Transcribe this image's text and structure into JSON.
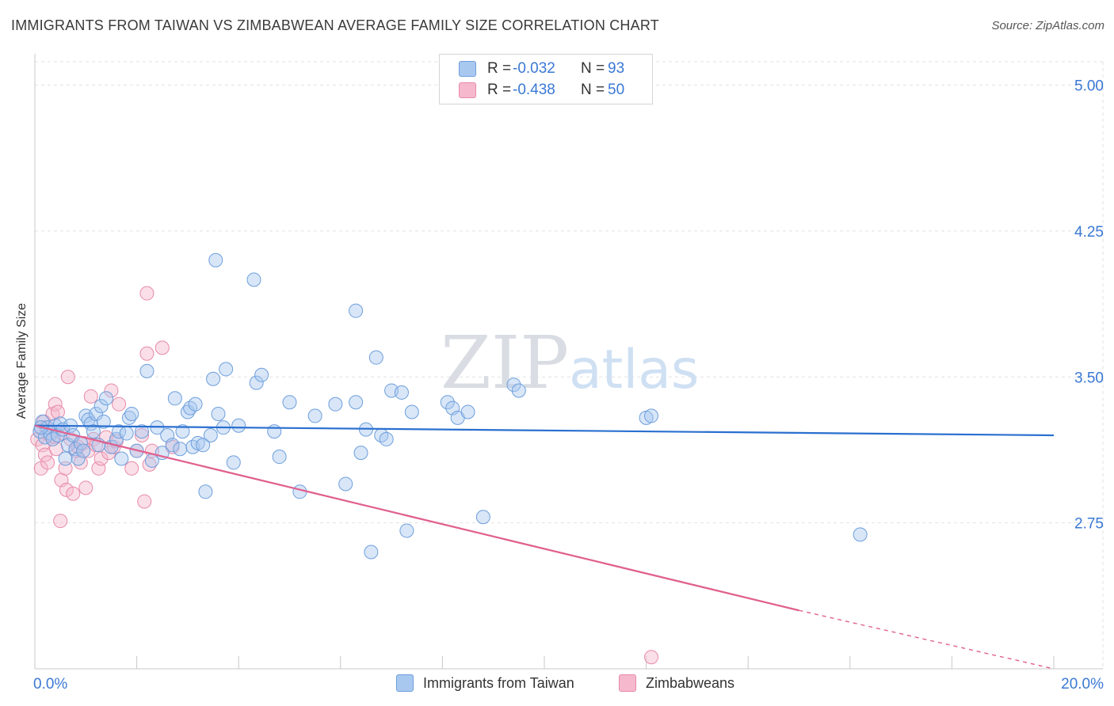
{
  "title": "IMMIGRANTS FROM TAIWAN VS ZIMBABWEAN AVERAGE FAMILY SIZE CORRELATION CHART",
  "source": "Source: ZipAtlas.com",
  "watermark": {
    "zip": "ZIP",
    "atlas": "atlas"
  },
  "legend": {
    "rows": [
      {
        "r_label": "R =",
        "r_value": "-0.032",
        "n_label": "N =",
        "n_value": "93"
      },
      {
        "r_label": "R =",
        "r_value": "-0.438",
        "n_label": "N =",
        "n_value": "50"
      }
    ]
  },
  "bottom_legend": {
    "series_1": "Immigrants from Taiwan",
    "series_2": "Zimbabweans"
  },
  "colors": {
    "blue_fill": "#a9c8f0",
    "blue_stroke": "#6e9fdc",
    "blue_line": "#2a6fcf",
    "pink_fill": "#f5b8cc",
    "pink_stroke": "#e88aa8",
    "pink_line": "#e0608e",
    "axis_text": "#3a78d4",
    "grid": "#e2e2e2"
  },
  "chart_data": {
    "type": "scatter",
    "title": "IMMIGRANTS FROM TAIWAN VS ZIMBABWEAN AVERAGE FAMILY SIZE CORRELATION CHART",
    "xlabel": "",
    "ylabel": "Average Family Size",
    "xlim": [
      0,
      20
    ],
    "ylim": [
      2.0,
      5.12
    ],
    "x_tick_labels": [
      "0.0%",
      "20.0%"
    ],
    "y_ticks": [
      2.75,
      3.5,
      4.25,
      5.0
    ],
    "y_tick_labels": [
      "2.75",
      "3.50",
      "4.25",
      "5.00"
    ],
    "series": [
      {
        "name": "Immigrants from Taiwan",
        "r": -0.032,
        "n": 93,
        "trend": {
          "x": [
            0,
            20
          ],
          "y": [
            3.25,
            3.2
          ]
        },
        "points": [
          [
            0.1,
            3.22
          ],
          [
            0.15,
            3.27
          ],
          [
            0.2,
            3.19
          ],
          [
            0.25,
            3.24
          ],
          [
            0.3,
            3.21
          ],
          [
            0.35,
            3.18
          ],
          [
            0.4,
            3.25
          ],
          [
            0.45,
            3.2
          ],
          [
            0.5,
            3.26
          ],
          [
            0.55,
            3.23
          ],
          [
            0.6,
            3.08
          ],
          [
            0.65,
            3.15
          ],
          [
            0.7,
            3.25
          ],
          [
            0.75,
            3.2
          ],
          [
            0.8,
            3.13
          ],
          [
            0.85,
            3.08
          ],
          [
            0.9,
            3.16
          ],
          [
            0.95,
            3.12
          ],
          [
            1.0,
            3.3
          ],
          [
            1.05,
            3.28
          ],
          [
            1.1,
            3.26
          ],
          [
            1.15,
            3.22
          ],
          [
            1.2,
            3.31
          ],
          [
            1.25,
            3.15
          ],
          [
            1.3,
            3.35
          ],
          [
            1.35,
            3.27
          ],
          [
            1.4,
            3.39
          ],
          [
            1.5,
            3.14
          ],
          [
            1.6,
            3.18
          ],
          [
            1.65,
            3.22
          ],
          [
            1.7,
            3.08
          ],
          [
            1.8,
            3.21
          ],
          [
            1.85,
            3.29
          ],
          [
            1.9,
            3.31
          ],
          [
            2.0,
            3.12
          ],
          [
            2.1,
            3.22
          ],
          [
            2.2,
            3.53
          ],
          [
            2.3,
            3.07
          ],
          [
            2.4,
            3.24
          ],
          [
            2.5,
            3.11
          ],
          [
            2.6,
            3.2
          ],
          [
            2.7,
            3.15
          ],
          [
            2.75,
            3.39
          ],
          [
            2.85,
            3.13
          ],
          [
            2.9,
            3.22
          ],
          [
            3.0,
            3.32
          ],
          [
            3.05,
            3.34
          ],
          [
            3.1,
            3.14
          ],
          [
            3.15,
            3.36
          ],
          [
            3.2,
            3.16
          ],
          [
            3.3,
            3.15
          ],
          [
            3.35,
            2.91
          ],
          [
            3.45,
            3.2
          ],
          [
            3.5,
            3.49
          ],
          [
            3.55,
            4.1
          ],
          [
            3.6,
            3.31
          ],
          [
            3.7,
            3.24
          ],
          [
            3.75,
            3.54
          ],
          [
            3.9,
            3.06
          ],
          [
            4.0,
            3.25
          ],
          [
            4.3,
            4.0
          ],
          [
            4.35,
            3.47
          ],
          [
            4.45,
            3.51
          ],
          [
            4.7,
            3.22
          ],
          [
            4.8,
            3.09
          ],
          [
            5.0,
            3.37
          ],
          [
            5.2,
            2.91
          ],
          [
            5.5,
            3.3
          ],
          [
            5.9,
            3.36
          ],
          [
            6.1,
            2.95
          ],
          [
            6.3,
            3.84
          ],
          [
            6.3,
            3.37
          ],
          [
            6.4,
            3.11
          ],
          [
            6.5,
            3.23
          ],
          [
            6.6,
            2.6
          ],
          [
            6.7,
            3.6
          ],
          [
            6.8,
            3.2
          ],
          [
            6.9,
            3.18
          ],
          [
            7.0,
            3.43
          ],
          [
            7.2,
            3.42
          ],
          [
            7.3,
            2.71
          ],
          [
            7.4,
            3.32
          ],
          [
            8.1,
            3.37
          ],
          [
            8.2,
            3.34
          ],
          [
            8.3,
            3.29
          ],
          [
            8.5,
            3.32
          ],
          [
            8.8,
            2.78
          ],
          [
            9.4,
            3.46
          ],
          [
            9.5,
            3.43
          ],
          [
            12.0,
            3.29
          ],
          [
            12.1,
            3.3
          ],
          [
            16.2,
            2.69
          ],
          [
            0.12,
            3.24
          ]
        ]
      },
      {
        "name": "Zimbabweans",
        "r": -0.438,
        "n": 50,
        "trend": {
          "x": [
            0,
            15
          ],
          "y": [
            3.25,
            2.3
          ]
        },
        "trend_dashed": {
          "x": [
            15,
            20
          ],
          "y": [
            2.3,
            2.0
          ]
        },
        "points": [
          [
            0.05,
            3.18
          ],
          [
            0.1,
            3.22
          ],
          [
            0.12,
            3.03
          ],
          [
            0.15,
            3.15
          ],
          [
            0.18,
            3.27
          ],
          [
            0.2,
            3.1
          ],
          [
            0.22,
            3.24
          ],
          [
            0.25,
            3.06
          ],
          [
            0.3,
            3.2
          ],
          [
            0.35,
            3.31
          ],
          [
            0.38,
            3.19
          ],
          [
            0.4,
            3.36
          ],
          [
            0.42,
            3.13
          ],
          [
            0.45,
            3.32
          ],
          [
            0.5,
            2.76
          ],
          [
            0.52,
            2.97
          ],
          [
            0.55,
            3.21
          ],
          [
            0.6,
            3.03
          ],
          [
            0.62,
            2.92
          ],
          [
            0.65,
            3.5
          ],
          [
            0.7,
            3.18
          ],
          [
            0.75,
            2.9
          ],
          [
            0.8,
            3.12
          ],
          [
            0.85,
            3.14
          ],
          [
            0.9,
            3.06
          ],
          [
            0.95,
            3.16
          ],
          [
            1.0,
            2.93
          ],
          [
            1.05,
            3.12
          ],
          [
            1.1,
            3.4
          ],
          [
            1.15,
            3.18
          ],
          [
            1.2,
            3.15
          ],
          [
            1.25,
            3.03
          ],
          [
            1.3,
            3.08
          ],
          [
            1.4,
            3.19
          ],
          [
            1.45,
            3.11
          ],
          [
            1.5,
            3.43
          ],
          [
            1.55,
            3.14
          ],
          [
            1.6,
            3.17
          ],
          [
            1.65,
            3.36
          ],
          [
            1.9,
            3.03
          ],
          [
            2.0,
            3.12
          ],
          [
            2.1,
            3.2
          ],
          [
            2.15,
            2.86
          ],
          [
            2.2,
            3.62
          ],
          [
            2.25,
            3.05
          ],
          [
            2.3,
            3.12
          ],
          [
            2.2,
            3.93
          ],
          [
            2.5,
            3.65
          ],
          [
            2.7,
            3.14
          ],
          [
            12.1,
            2.06
          ]
        ]
      }
    ]
  }
}
